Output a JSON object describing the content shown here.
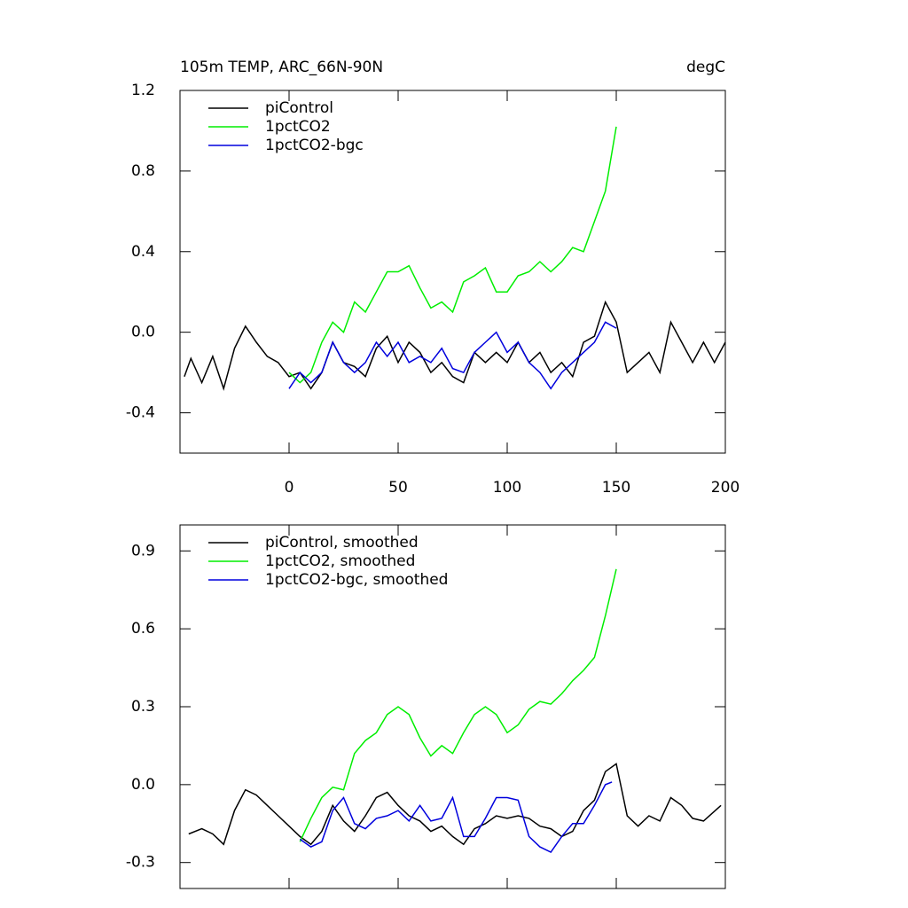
{
  "chart_data": [
    {
      "type": "line",
      "title": "105m TEMP, ARC_66N-90N",
      "right_title": "degC",
      "xlim": [
        -50,
        200
      ],
      "xticks": [
        0,
        50,
        100,
        150,
        200
      ],
      "xtick_labels": true,
      "ylim": [
        -0.6,
        1.2
      ],
      "yticks": [
        1.2,
        0.8,
        0.4,
        {
          "value": 0,
          "label": "0.0"
        },
        -0.4
      ],
      "legend": "upper left",
      "series": [
        {
          "name": "piControl",
          "color": "#000000",
          "x": [
            -48,
            -45,
            -40,
            -35,
            -30,
            -25,
            -20,
            -15,
            -10,
            -5,
            0,
            5,
            10,
            15,
            20,
            25,
            30,
            35,
            40,
            45,
            50,
            55,
            60,
            65,
            70,
            75,
            80,
            85,
            90,
            95,
            100,
            105,
            110,
            115,
            120,
            125,
            130,
            135,
            140,
            145,
            150,
            155,
            160,
            165,
            170,
            175,
            180,
            185,
            190,
            195,
            200
          ],
          "values": [
            -0.22,
            -0.13,
            -0.25,
            -0.12,
            -0.28,
            -0.08,
            0.03,
            -0.05,
            -0.12,
            -0.15,
            -0.22,
            -0.2,
            -0.28,
            -0.2,
            -0.05,
            -0.15,
            -0.17,
            -0.22,
            -0.08,
            -0.02,
            -0.15,
            -0.05,
            -0.1,
            -0.2,
            -0.15,
            -0.22,
            -0.25,
            -0.1,
            -0.15,
            -0.1,
            -0.15,
            -0.05,
            -0.15,
            -0.1,
            -0.2,
            -0.15,
            -0.22,
            -0.05,
            -0.02,
            0.15,
            0.05,
            -0.2,
            -0.15,
            -0.1,
            -0.2,
            0.05,
            -0.05,
            -0.15,
            -0.05,
            -0.15,
            -0.05
          ]
        },
        {
          "name": "1pctCO2",
          "color": "#00ee00",
          "x": [
            0,
            5,
            10,
            15,
            20,
            25,
            30,
            35,
            40,
            45,
            50,
            55,
            60,
            65,
            70,
            75,
            80,
            85,
            90,
            95,
            100,
            105,
            110,
            115,
            120,
            125,
            130,
            135,
            140,
            145,
            150
          ],
          "values": [
            -0.2,
            -0.25,
            -0.2,
            -0.05,
            0.05,
            0.0,
            0.15,
            0.1,
            0.2,
            0.3,
            0.3,
            0.33,
            0.22,
            0.12,
            0.15,
            0.1,
            0.25,
            0.28,
            0.32,
            0.2,
            0.2,
            0.28,
            0.3,
            0.35,
            0.3,
            0.35,
            0.42,
            0.4,
            0.55,
            0.7,
            1.02
          ]
        },
        {
          "name": "1pctCO2-bgc",
          "color": "#0000dd",
          "x": [
            0,
            5,
            10,
            15,
            20,
            25,
            30,
            35,
            40,
            45,
            50,
            55,
            60,
            65,
            70,
            75,
            80,
            85,
            90,
            95,
            100,
            105,
            110,
            115,
            120,
            125,
            130,
            135,
            140,
            145,
            150
          ],
          "values": [
            -0.28,
            -0.2,
            -0.25,
            -0.2,
            -0.05,
            -0.15,
            -0.2,
            -0.15,
            -0.05,
            -0.12,
            -0.05,
            -0.15,
            -0.12,
            -0.15,
            -0.08,
            -0.18,
            -0.2,
            -0.1,
            -0.05,
            0.0,
            -0.1,
            -0.05,
            -0.15,
            -0.2,
            -0.28,
            -0.2,
            -0.15,
            -0.1,
            -0.05,
            0.05,
            0.02
          ]
        }
      ]
    },
    {
      "type": "line",
      "xlim": [
        -50,
        200
      ],
      "xticks": [
        0,
        50,
        100,
        150,
        200
      ],
      "xtick_labels": false,
      "ylim": [
        -0.4,
        1.0
      ],
      "yticks": [
        0.9,
        0.6,
        0.3,
        {
          "value": 0,
          "label": "0.0"
        },
        -0.3
      ],
      "legend": "upper left",
      "series": [
        {
          "name": "piControl, smoothed",
          "color": "#000000",
          "x": [
            -46,
            -40,
            -35,
            -30,
            -25,
            -20,
            -15,
            -10,
            -5,
            0,
            5,
            10,
            15,
            20,
            25,
            30,
            35,
            40,
            45,
            50,
            55,
            60,
            65,
            70,
            75,
            80,
            85,
            90,
            95,
            100,
            105,
            110,
            115,
            120,
            125,
            130,
            135,
            140,
            145,
            150,
            155,
            160,
            165,
            170,
            175,
            180,
            185,
            190,
            198
          ],
          "values": [
            -0.19,
            -0.17,
            -0.19,
            -0.23,
            -0.1,
            -0.02,
            -0.04,
            -0.08,
            -0.12,
            -0.16,
            -0.2,
            -0.23,
            -0.18,
            -0.08,
            -0.14,
            -0.18,
            -0.12,
            -0.05,
            -0.03,
            -0.08,
            -0.12,
            -0.14,
            -0.18,
            -0.16,
            -0.2,
            -0.23,
            -0.17,
            -0.15,
            -0.12,
            -0.13,
            -0.12,
            -0.13,
            -0.16,
            -0.17,
            -0.2,
            -0.18,
            -0.1,
            -0.06,
            0.05,
            0.08,
            -0.12,
            -0.16,
            -0.12,
            -0.14,
            -0.05,
            -0.08,
            -0.13,
            -0.14,
            -0.08
          ]
        },
        {
          "name": "1pctCO2, smoothed",
          "color": "#00ee00",
          "x": [
            5,
            10,
            15,
            20,
            25,
            30,
            35,
            40,
            45,
            50,
            55,
            60,
            65,
            70,
            75,
            80,
            85,
            90,
            95,
            100,
            105,
            110,
            115,
            120,
            125,
            130,
            135,
            140,
            145,
            150
          ],
          "values": [
            -0.22,
            -0.13,
            -0.05,
            -0.01,
            -0.02,
            0.12,
            0.17,
            0.2,
            0.27,
            0.3,
            0.27,
            0.18,
            0.11,
            0.15,
            0.12,
            0.2,
            0.27,
            0.3,
            0.27,
            0.2,
            0.23,
            0.29,
            0.32,
            0.31,
            0.35,
            0.4,
            0.44,
            0.49,
            0.65,
            0.83
          ]
        },
        {
          "name": "1pctCO2-bgc, smoothed",
          "color": "#0000dd",
          "x": [
            5,
            10,
            15,
            20,
            25,
            30,
            35,
            40,
            45,
            50,
            55,
            60,
            65,
            70,
            75,
            80,
            85,
            90,
            95,
            100,
            105,
            110,
            115,
            120,
            125,
            130,
            135,
            140,
            145,
            148
          ],
          "values": [
            -0.21,
            -0.24,
            -0.22,
            -0.1,
            -0.05,
            -0.15,
            -0.17,
            -0.13,
            -0.12,
            -0.1,
            -0.14,
            -0.08,
            -0.14,
            -0.13,
            -0.05,
            -0.2,
            -0.2,
            -0.13,
            -0.05,
            -0.05,
            -0.06,
            -0.2,
            -0.24,
            -0.26,
            -0.2,
            -0.15,
            -0.15,
            -0.08,
            0.0,
            0.01
          ]
        }
      ]
    }
  ]
}
